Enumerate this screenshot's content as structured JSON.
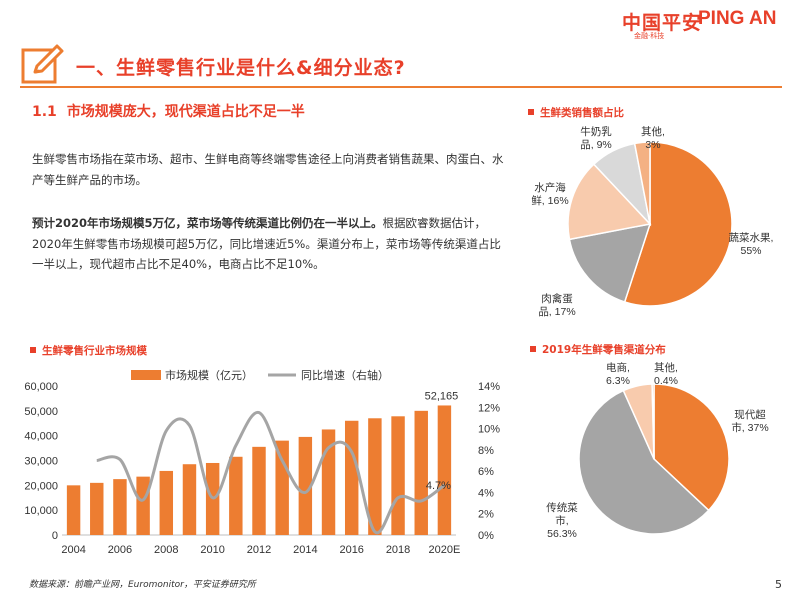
{
  "brand": {
    "name_cn": "中国平安",
    "name_en": "PING AN",
    "tagline": "金融·科技"
  },
  "page_title": "一、生鲜零售行业是什么&细分业态?",
  "section": {
    "number": "1.1",
    "title": "市场规模庞大，现代渠道占比不足一半"
  },
  "paragraph1": "生鲜零售市场指在菜市场、超市、生鲜电商等终端零售途径上向消费者销售蔬果、肉蛋白、水产等生鲜产品的市场。",
  "paragraph2": {
    "bold": "预计2020年市场规模5万亿，菜市场等传统渠道比例仍在一半以上。",
    "rest": "根据欧睿数据估计，2020年生鲜零售市场规模可超5万亿，同比增速近5%。渠道分布上，菜市场等传统渠道占比一半以上，现代超市占比不足40%，电商占比不足10%。"
  },
  "source": "数据来源：前瞻产业网，Euromonitor，平安证券研究所",
  "page_number": "5",
  "chart_data": [
    {
      "id": "pie-category",
      "type": "pie",
      "title": "生鲜类销售额占比",
      "slices": [
        {
          "label_lines": [
            "蔬菜水果,",
            "55%"
          ],
          "value": 55,
          "color": "#ed7d31"
        },
        {
          "label_lines": [
            "肉禽蛋",
            "品, 17%"
          ],
          "value": 17,
          "color": "#a5a5a5"
        },
        {
          "label_lines": [
            "水产海",
            "鲜, 16%"
          ],
          "value": 16,
          "color": "#f8cbad"
        },
        {
          "label_lines": [
            "牛奶乳",
            "品, 9%"
          ],
          "value": 9,
          "color": "#d9d9d9"
        },
        {
          "label_lines": [
            "其他,",
            "3%"
          ],
          "value": 3,
          "color": "#f4b183"
        }
      ]
    },
    {
      "id": "combo-market",
      "type": "bar",
      "title": "生鲜零售行业市场规模",
      "legend": [
        "市场规模（亿元）",
        "同比增速（右轴）"
      ],
      "categories": [
        "2004",
        "2005",
        "2006",
        "2007",
        "2008",
        "2009",
        "2010",
        "2011",
        "2012",
        "2013",
        "2014",
        "2015",
        "2016",
        "2017",
        "2018",
        "2019",
        "2020E"
      ],
      "x_tick_labels": [
        "2004",
        "2006",
        "2008",
        "2010",
        "2012",
        "2014",
        "2016",
        "2018",
        "2020E"
      ],
      "series": [
        {
          "name": "市场规模（亿元）",
          "axis": "left",
          "values": [
            20000,
            21000,
            22500,
            23500,
            25800,
            28500,
            29000,
            31500,
            35500,
            38000,
            39500,
            42500,
            46000,
            47000,
            47800,
            50000,
            52165
          ],
          "color": "#ed7d31"
        },
        {
          "name": "同比增速（右轴）",
          "axis": "right",
          "values": [
            null,
            7.0,
            7.1,
            3.3,
            9.8,
            10.3,
            3.5,
            8.4,
            11.5,
            7.0,
            4.0,
            8.2,
            7.8,
            0.3,
            3.5,
            3.2,
            4.7
          ],
          "color": "#a5a5a5"
        }
      ],
      "ylim": [
        0,
        60000
      ],
      "yticks": [
        "0",
        "10,000",
        "20,000",
        "30,000",
        "40,000",
        "50,000",
        "60,000"
      ],
      "y2lim": [
        0,
        14
      ],
      "y2ticks": [
        "0%",
        "2%",
        "4%",
        "6%",
        "8%",
        "10%",
        "12%",
        "14%"
      ],
      "annotations": {
        "last_bar": "52,165",
        "last_rate": "4.7%"
      }
    },
    {
      "id": "pie-channel",
      "type": "pie",
      "title": "2019年生鲜零售渠道分布",
      "slices": [
        {
          "label_lines": [
            "现代超",
            "市, 37%"
          ],
          "value": 37,
          "color": "#ed7d31"
        },
        {
          "label_lines": [
            "传统菜",
            "市,",
            "56.3%"
          ],
          "value": 56.3,
          "color": "#a5a5a5"
        },
        {
          "label_lines": [
            "电商,",
            "6.3%"
          ],
          "value": 6.3,
          "color": "#f8cbad"
        },
        {
          "label_lines": [
            "其他,",
            "0.4%"
          ],
          "value": 0.4,
          "color": "#f4b183"
        }
      ]
    }
  ]
}
